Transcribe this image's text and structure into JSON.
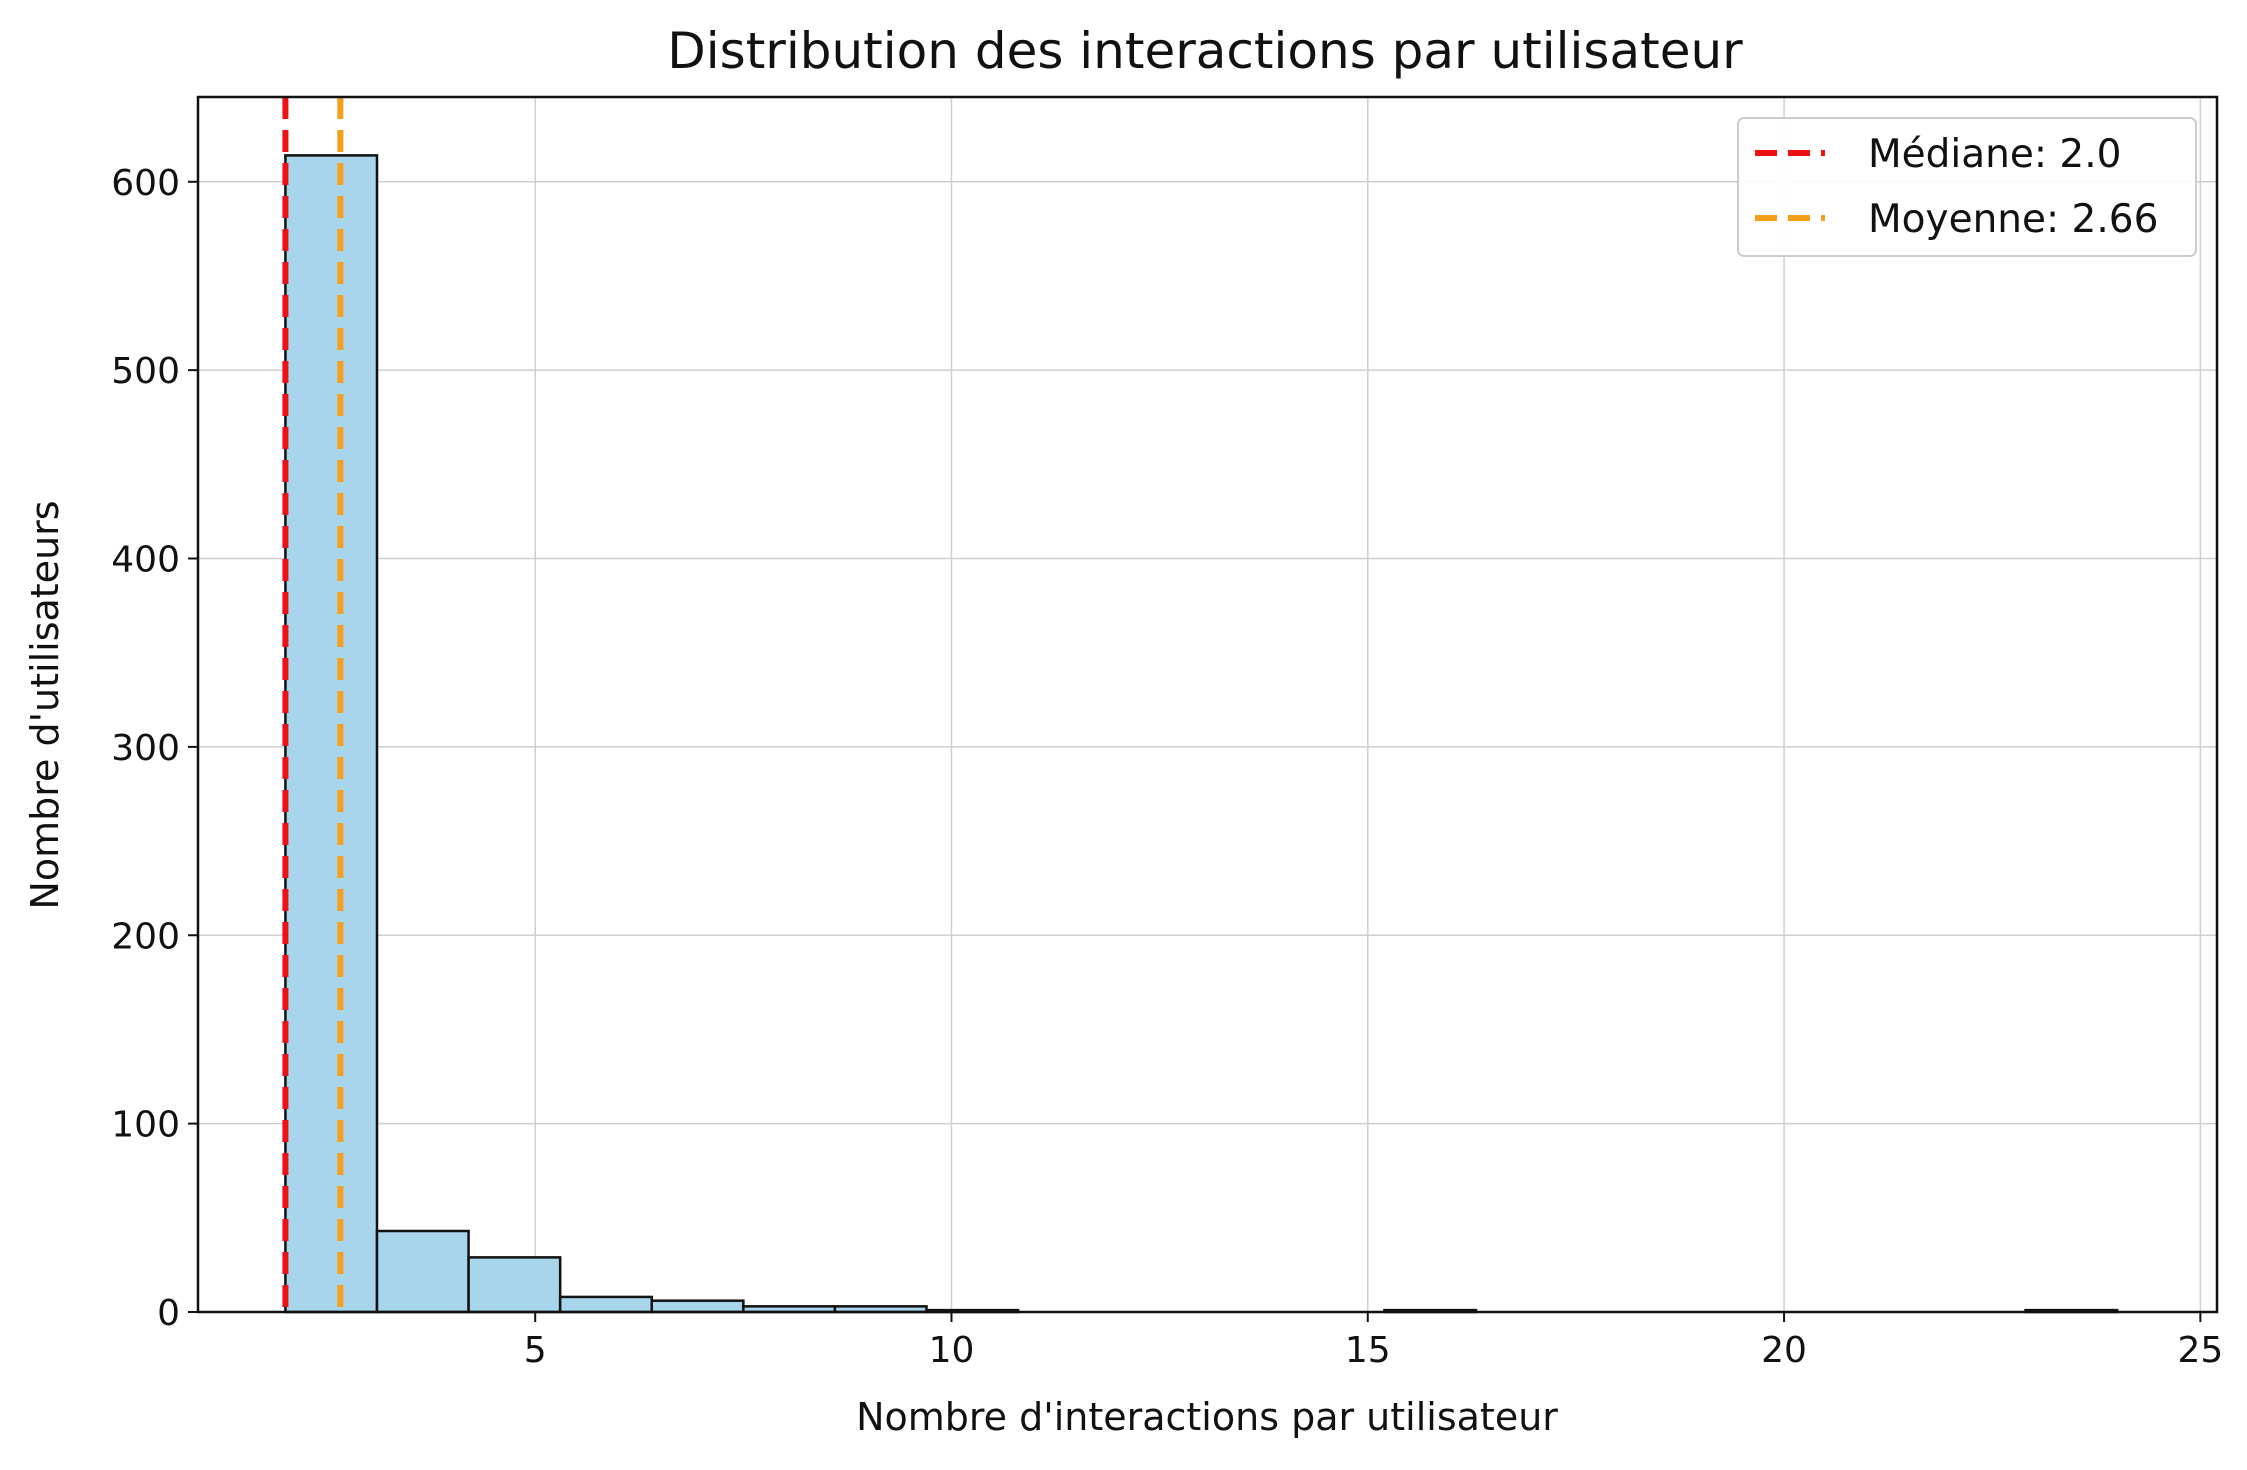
{
  "chart_data": {
    "type": "bar",
    "title": "Distribution des interactions par utilisateur",
    "xlabel": "Nombre d'interactions par utilisateur",
    "ylabel": "Nombre d'utilisateurs",
    "xlim": [
      0.95,
      25.2
    ],
    "ylim": [
      0,
      645
    ],
    "xticks": [
      5,
      10,
      15,
      20,
      25
    ],
    "yticks": [
      0,
      100,
      200,
      300,
      400,
      500,
      600
    ],
    "grid": true,
    "legend_position": "top-right",
    "bar_color": "#a8d5ec",
    "bins": [
      {
        "x0": 2.0,
        "x1": 3.1,
        "count": 614
      },
      {
        "x0": 3.1,
        "x1": 4.2,
        "count": 43
      },
      {
        "x0": 4.2,
        "x1": 5.3,
        "count": 29
      },
      {
        "x0": 5.3,
        "x1": 6.4,
        "count": 8
      },
      {
        "x0": 6.4,
        "x1": 7.5,
        "count": 6
      },
      {
        "x0": 7.5,
        "x1": 8.6,
        "count": 3
      },
      {
        "x0": 8.6,
        "x1": 9.7,
        "count": 3
      },
      {
        "x0": 9.7,
        "x1": 10.8,
        "count": 1
      },
      {
        "x0": 10.8,
        "x1": 11.9,
        "count": 0
      },
      {
        "x0": 11.9,
        "x1": 13.0,
        "count": 0
      },
      {
        "x0": 13.0,
        "x1": 14.1,
        "count": 0
      },
      {
        "x0": 14.1,
        "x1": 15.2,
        "count": 0
      },
      {
        "x0": 15.2,
        "x1": 16.3,
        "count": 1
      },
      {
        "x0": 16.3,
        "x1": 17.4,
        "count": 0
      },
      {
        "x0": 17.4,
        "x1": 18.5,
        "count": 0
      },
      {
        "x0": 18.5,
        "x1": 19.6,
        "count": 0
      },
      {
        "x0": 19.6,
        "x1": 20.7,
        "count": 0
      },
      {
        "x0": 20.7,
        "x1": 21.8,
        "count": 0
      },
      {
        "x0": 21.8,
        "x1": 22.9,
        "count": 0
      },
      {
        "x0": 22.9,
        "x1": 24.0,
        "count": 1
      }
    ],
    "reference_lines": [
      {
        "label": "Médiane: 2.0",
        "value": 2.0,
        "color": "#ee1111",
        "style": "dashed"
      },
      {
        "label": "Moyenne: 2.66",
        "value": 2.66,
        "color": "#f5a01a",
        "style": "dashed"
      }
    ]
  }
}
